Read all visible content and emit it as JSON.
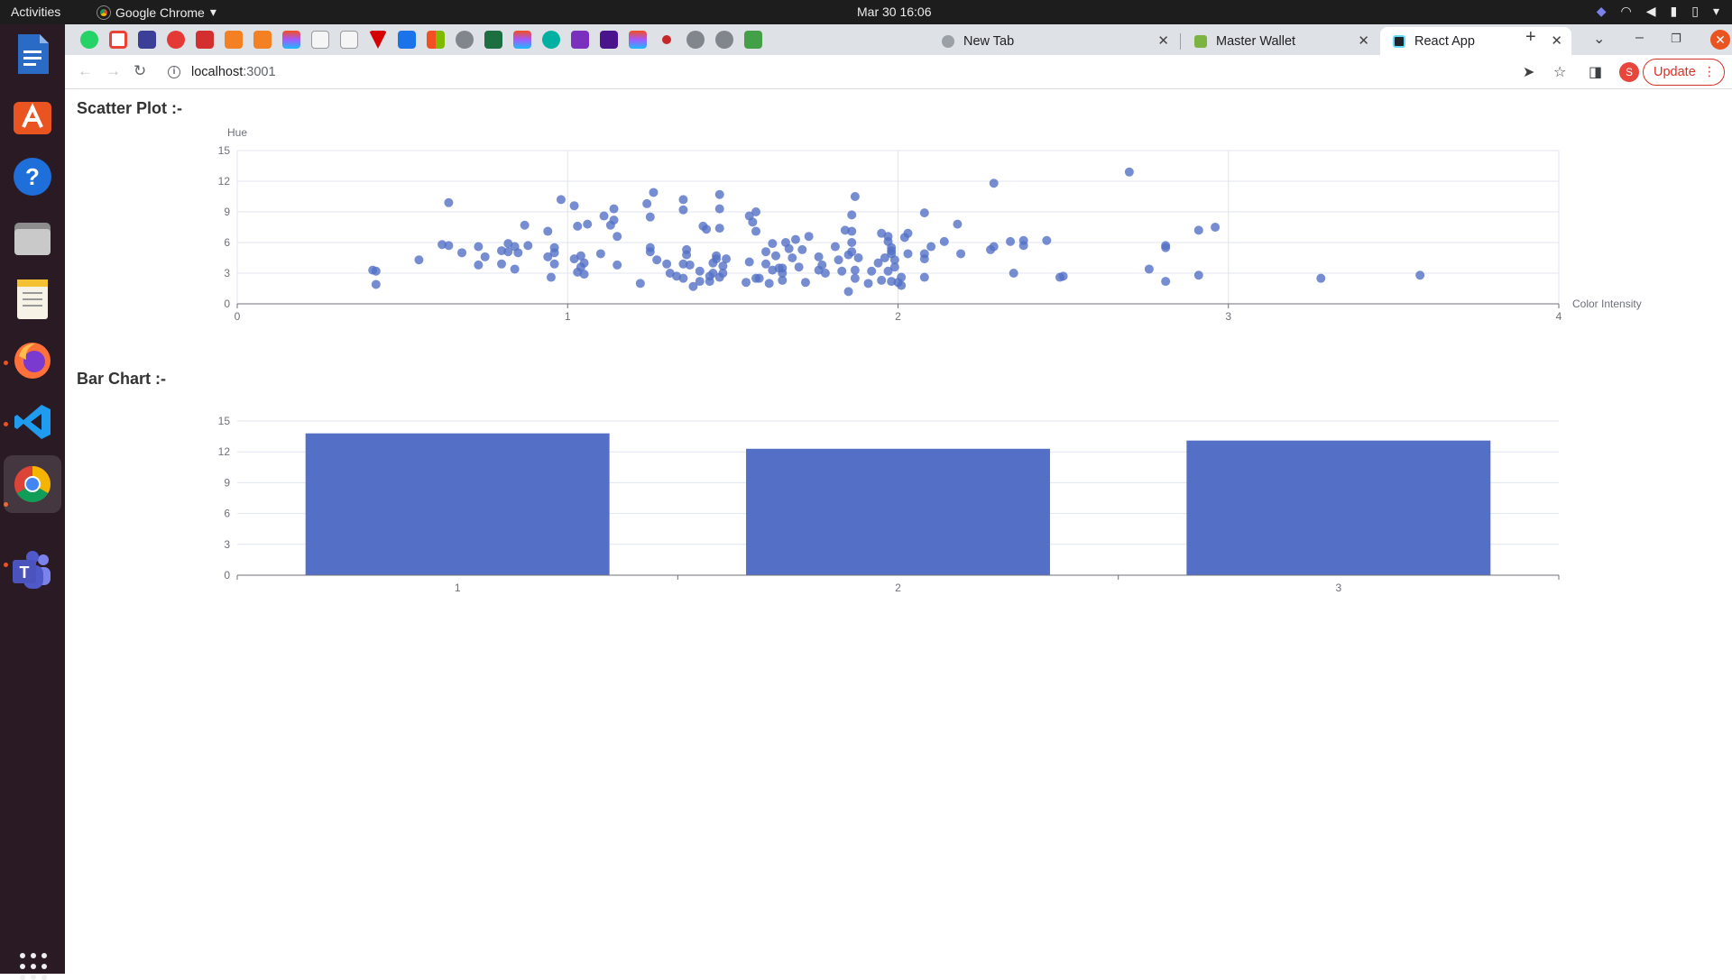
{
  "system": {
    "activities": "Activities",
    "app_name": "Google Chrome",
    "clock": "Mar 30  16:06"
  },
  "browser": {
    "tabs": [
      {
        "title": "New Tab",
        "active": false
      },
      {
        "title": "Master Wallet",
        "active": false
      },
      {
        "title": "React App",
        "active": true
      }
    ],
    "address_host": "localhost",
    "address_port": ":3001",
    "profile_initial": "S",
    "update_label": "Update"
  },
  "page": {
    "scatter_heading": "Scatter Plot :-",
    "bar_heading": "Bar Chart :-"
  },
  "colors": {
    "accent": "#5470c6",
    "ubuntu_orange": "#e95420"
  },
  "chart_data": [
    {
      "type": "scatter",
      "title": "Scatter Plot :-",
      "xlabel": "Color Intensity",
      "ylabel": "Hue",
      "xlim": [
        0,
        4
      ],
      "ylim": [
        0,
        15
      ],
      "x_ticks": [
        "0",
        "1",
        "2",
        "3",
        "4"
      ],
      "y_ticks": [
        "0",
        "3",
        "6",
        "9",
        "12",
        "15"
      ],
      "grid": true,
      "points": [
        [
          0.41,
          3.3
        ],
        [
          0.42,
          3.2
        ],
        [
          0.42,
          1.9
        ],
        [
          0.55,
          4.3
        ],
        [
          0.62,
          5.8
        ],
        [
          0.64,
          5.7
        ],
        [
          0.64,
          9.9
        ],
        [
          0.68,
          5.0
        ],
        [
          0.73,
          5.6
        ],
        [
          0.73,
          3.8
        ],
        [
          0.75,
          4.6
        ],
        [
          0.8,
          5.2
        ],
        [
          0.8,
          3.9
        ],
        [
          0.82,
          5.9
        ],
        [
          0.82,
          5.1
        ],
        [
          0.84,
          5.6
        ],
        [
          0.84,
          3.4
        ],
        [
          0.85,
          5.0
        ],
        [
          0.87,
          7.7
        ],
        [
          0.88,
          5.7
        ],
        [
          0.94,
          4.6
        ],
        [
          0.94,
          7.1
        ],
        [
          0.95,
          2.6
        ],
        [
          0.96,
          5.0
        ],
        [
          0.96,
          5.5
        ],
        [
          0.96,
          3.9
        ],
        [
          0.98,
          10.2
        ],
        [
          1.02,
          4.4
        ],
        [
          1.02,
          9.6
        ],
        [
          1.03,
          3.1
        ],
        [
          1.03,
          7.6
        ],
        [
          1.04,
          4.7
        ],
        [
          1.04,
          3.6
        ],
        [
          1.05,
          2.9
        ],
        [
          1.05,
          4.0
        ],
        [
          1.06,
          7.8
        ],
        [
          1.1,
          4.9
        ],
        [
          1.11,
          8.6
        ],
        [
          1.13,
          7.7
        ],
        [
          1.14,
          8.2
        ],
        [
          1.14,
          9.3
        ],
        [
          1.15,
          6.6
        ],
        [
          1.15,
          3.8
        ],
        [
          1.22,
          2.0
        ],
        [
          1.24,
          9.8
        ],
        [
          1.25,
          8.5
        ],
        [
          1.26,
          10.9
        ],
        [
          1.25,
          5.1
        ],
        [
          1.25,
          5.5
        ],
        [
          1.27,
          4.3
        ],
        [
          1.3,
          3.9
        ],
        [
          1.31,
          3.0
        ],
        [
          1.33,
          2.7
        ],
        [
          1.35,
          2.5
        ],
        [
          1.35,
          10.2
        ],
        [
          1.35,
          3.9
        ],
        [
          1.36,
          4.8
        ],
        [
          1.35,
          9.2
        ],
        [
          1.36,
          5.3
        ],
        [
          1.37,
          3.8
        ],
        [
          1.38,
          1.7
        ],
        [
          1.4,
          2.2
        ],
        [
          1.4,
          3.2
        ],
        [
          1.41,
          7.6
        ],
        [
          1.42,
          7.3
        ],
        [
          1.43,
          2.2
        ],
        [
          1.43,
          2.7
        ],
        [
          1.44,
          4.0
        ],
        [
          1.44,
          3.0
        ],
        [
          1.45,
          4.4
        ],
        [
          1.45,
          4.7
        ],
        [
          1.46,
          10.7
        ],
        [
          1.46,
          9.3
        ],
        [
          1.46,
          7.4
        ],
        [
          1.46,
          2.6
        ],
        [
          1.47,
          3.7
        ],
        [
          1.47,
          3.0
        ],
        [
          1.48,
          4.4
        ],
        [
          1.54,
          2.1
        ],
        [
          1.55,
          8.6
        ],
        [
          1.55,
          4.1
        ],
        [
          1.56,
          8.0
        ],
        [
          1.57,
          7.1
        ],
        [
          1.57,
          9.0
        ],
        [
          1.57,
          2.5
        ],
        [
          1.58,
          2.5
        ],
        [
          1.6,
          5.1
        ],
        [
          1.6,
          3.9
        ],
        [
          1.61,
          2.0
        ],
        [
          1.62,
          5.9
        ],
        [
          1.62,
          3.3
        ],
        [
          1.63,
          4.7
        ],
        [
          1.64,
          3.5
        ],
        [
          1.65,
          2.3
        ],
        [
          1.65,
          3.0
        ],
        [
          1.65,
          3.5
        ],
        [
          1.66,
          6.0
        ],
        [
          1.67,
          5.4
        ],
        [
          1.68,
          4.5
        ],
        [
          1.69,
          6.3
        ],
        [
          1.7,
          3.6
        ],
        [
          1.71,
          5.3
        ],
        [
          1.72,
          2.1
        ],
        [
          1.73,
          6.6
        ],
        [
          1.76,
          4.6
        ],
        [
          1.76,
          3.3
        ],
        [
          1.77,
          3.8
        ],
        [
          1.78,
          3.0
        ],
        [
          1.81,
          5.6
        ],
        [
          1.82,
          4.3
        ],
        [
          1.83,
          3.2
        ],
        [
          1.84,
          7.2
        ],
        [
          1.85,
          4.8
        ],
        [
          1.85,
          1.2
        ],
        [
          1.86,
          5.1
        ],
        [
          1.86,
          6.0
        ],
        [
          1.86,
          7.1
        ],
        [
          1.87,
          3.3
        ],
        [
          1.87,
          2.5
        ],
        [
          1.87,
          10.5
        ],
        [
          1.86,
          8.7
        ],
        [
          1.88,
          4.5
        ],
        [
          1.91,
          2.0
        ],
        [
          1.92,
          3.2
        ],
        [
          1.94,
          4.0
        ],
        [
          1.95,
          2.3
        ],
        [
          1.95,
          6.9
        ],
        [
          1.96,
          4.5
        ],
        [
          1.97,
          3.2
        ],
        [
          1.97,
          6.1
        ],
        [
          1.97,
          6.6
        ],
        [
          1.98,
          4.9
        ],
        [
          1.98,
          5.5
        ],
        [
          1.98,
          5.2
        ],
        [
          1.99,
          3.6
        ],
        [
          1.99,
          4.3
        ],
        [
          1.98,
          2.2
        ],
        [
          2.0,
          2.1
        ],
        [
          2.01,
          1.8
        ],
        [
          2.01,
          2.6
        ],
        [
          2.02,
          6.5
        ],
        [
          2.03,
          6.9
        ],
        [
          2.03,
          4.9
        ],
        [
          2.08,
          2.6
        ],
        [
          2.08,
          4.4
        ],
        [
          2.08,
          4.9
        ],
        [
          2.08,
          8.9
        ],
        [
          2.1,
          5.6
        ],
        [
          2.14,
          6.1
        ],
        [
          2.18,
          7.8
        ],
        [
          2.19,
          4.9
        ],
        [
          2.28,
          5.3
        ],
        [
          2.29,
          5.6
        ],
        [
          2.29,
          11.8
        ],
        [
          2.34,
          6.1
        ],
        [
          2.35,
          3.0
        ],
        [
          2.38,
          5.7
        ],
        [
          2.38,
          6.2
        ],
        [
          2.45,
          6.2
        ],
        [
          2.49,
          2.6
        ],
        [
          2.5,
          2.7
        ],
        [
          2.7,
          12.9
        ],
        [
          2.76,
          3.4
        ],
        [
          2.81,
          2.2
        ],
        [
          2.81,
          5.5
        ],
        [
          2.81,
          5.7
        ],
        [
          2.91,
          2.8
        ],
        [
          2.91,
          7.2
        ],
        [
          2.96,
          7.5
        ],
        [
          3.28,
          2.5
        ],
        [
          3.58,
          2.8
        ]
      ]
    },
    {
      "type": "bar",
      "title": "Bar Chart :-",
      "categories": [
        "1",
        "2",
        "3"
      ],
      "values": [
        13.8,
        12.3,
        13.1
      ],
      "ylim": [
        0,
        15
      ],
      "y_ticks": [
        "0",
        "3",
        "6",
        "9",
        "12",
        "15"
      ],
      "grid": true
    }
  ]
}
